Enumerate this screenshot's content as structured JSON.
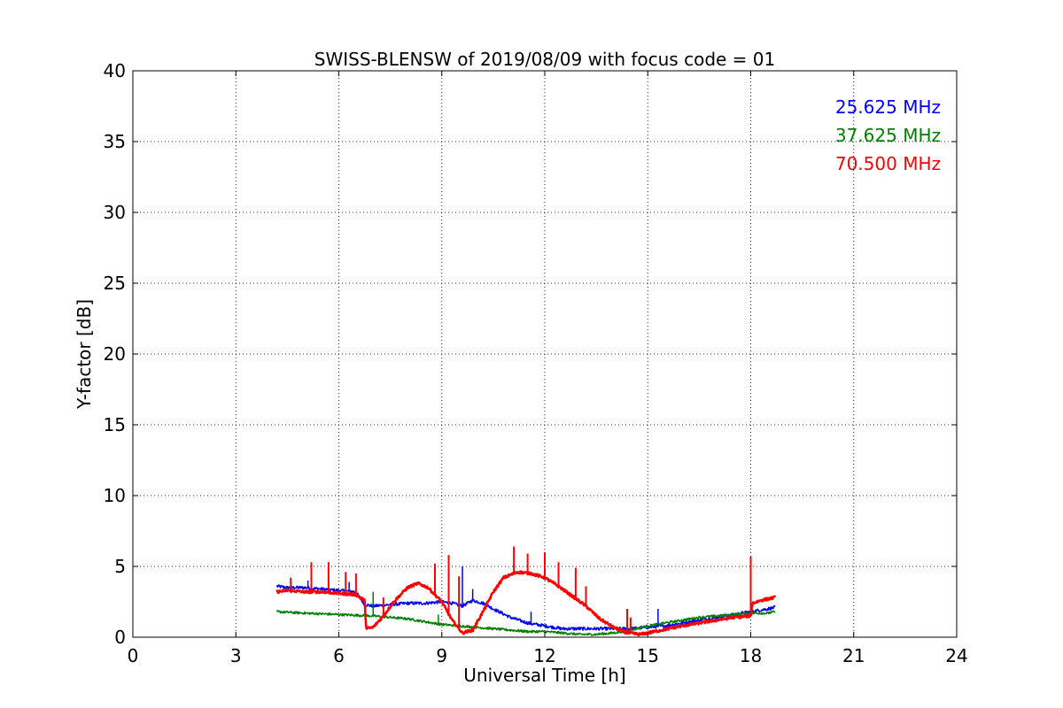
{
  "chart_data": {
    "type": "line",
    "title": "SWISS-BLENSW of 2019/08/09 with focus code = 01",
    "xlabel": "Universal Time [h]",
    "ylabel": "Y-factor [dB]",
    "xlim": [
      0,
      24
    ],
    "ylim": [
      0,
      40
    ],
    "xticks": [
      0,
      3,
      6,
      9,
      12,
      15,
      18,
      21,
      24
    ],
    "yticks": [
      0,
      5,
      10,
      15,
      20,
      25,
      30,
      35,
      40
    ],
    "x_tick_labels": [
      "0",
      "3",
      "6",
      "9",
      "12",
      "15",
      "18",
      "21",
      "24"
    ],
    "y_tick_labels": [
      "0",
      "5",
      "10",
      "15",
      "20",
      "25",
      "30",
      "35",
      "40"
    ],
    "grid": true,
    "legend_position": "top-right",
    "series": [
      {
        "name": "25.625 MHz",
        "color": "#0000ff",
        "x": [
          4.2,
          4.5,
          5.0,
          5.5,
          6.0,
          6.5,
          6.75,
          7.0,
          7.5,
          8.0,
          8.5,
          9.0,
          9.3,
          9.6,
          9.9,
          10.2,
          10.5,
          11.0,
          11.5,
          12.0,
          12.5,
          13.0,
          13.5,
          14.0,
          14.5,
          15.0,
          15.5,
          16.0,
          16.5,
          17.0,
          17.5,
          18.0,
          18.5,
          18.7
        ],
        "y": [
          3.6,
          3.5,
          3.5,
          3.4,
          3.3,
          3.2,
          2.3,
          2.2,
          2.3,
          2.4,
          2.4,
          2.5,
          2.4,
          2.2,
          2.6,
          2.4,
          2.0,
          1.4,
          1.0,
          0.8,
          0.6,
          0.6,
          0.6,
          0.6,
          0.6,
          0.7,
          0.8,
          1.0,
          1.2,
          1.4,
          1.6,
          1.8,
          2.0,
          2.1
        ],
        "spikes": [
          {
            "x": 4.6,
            "y": 4.2
          },
          {
            "x": 5.1,
            "y": 4.0
          },
          {
            "x": 5.7,
            "y": 4.1
          },
          {
            "x": 6.3,
            "y": 3.9
          },
          {
            "x": 9.6,
            "y": 5.0
          },
          {
            "x": 9.9,
            "y": 3.4
          },
          {
            "x": 11.6,
            "y": 1.8
          },
          {
            "x": 15.3,
            "y": 2.0
          }
        ]
      },
      {
        "name": "37.625 MHz",
        "color": "#008000",
        "x": [
          4.2,
          5.0,
          6.0,
          7.0,
          8.0,
          8.5,
          9.0,
          9.5,
          10.0,
          10.5,
          11.0,
          11.5,
          12.0,
          12.5,
          13.0,
          13.5,
          14.0,
          14.5,
          15.0,
          15.5,
          16.0,
          16.5,
          17.0,
          17.5,
          18.0,
          18.5,
          18.7
        ],
        "y": [
          1.8,
          1.7,
          1.6,
          1.5,
          1.3,
          1.1,
          0.9,
          0.8,
          0.7,
          0.6,
          0.5,
          0.4,
          0.4,
          0.3,
          0.2,
          0.2,
          0.3,
          0.5,
          0.8,
          1.0,
          1.2,
          1.4,
          1.5,
          1.6,
          1.7,
          1.7,
          1.8
        ],
        "spikes": [
          {
            "x": 7.0,
            "y": 3.2
          },
          {
            "x": 8.9,
            "y": 1.6
          }
        ]
      },
      {
        "name": "70.500 MHz",
        "color": "#ff0000",
        "x": [
          4.2,
          4.5,
          5.0,
          5.5,
          6.0,
          6.5,
          6.75,
          6.8,
          7.0,
          7.3,
          7.6,
          8.0,
          8.3,
          8.6,
          9.0,
          9.3,
          9.6,
          9.9,
          10.2,
          10.5,
          10.8,
          11.2,
          11.6,
          12.0,
          12.4,
          12.8,
          13.2,
          13.6,
          14.0,
          14.4,
          14.8,
          15.2,
          15.6,
          16.0,
          16.5,
          17.0,
          17.5,
          18.0,
          18.05,
          18.3,
          18.7
        ],
        "y": [
          3.2,
          3.3,
          3.2,
          3.2,
          3.1,
          3.0,
          2.6,
          0.6,
          0.7,
          1.5,
          2.5,
          3.5,
          3.8,
          3.5,
          2.5,
          1.2,
          0.3,
          0.5,
          1.8,
          3.2,
          4.2,
          4.6,
          4.5,
          4.2,
          3.6,
          2.9,
          2.2,
          1.3,
          0.7,
          0.3,
          0.2,
          0.4,
          0.6,
          0.8,
          1.0,
          1.2,
          1.4,
          1.5,
          2.4,
          2.6,
          2.8
        ],
        "spikes": [
          {
            "x": 4.6,
            "y": 4.1
          },
          {
            "x": 5.2,
            "y": 5.3
          },
          {
            "x": 5.7,
            "y": 5.3
          },
          {
            "x": 6.2,
            "y": 4.6
          },
          {
            "x": 6.5,
            "y": 4.5
          },
          {
            "x": 7.3,
            "y": 2.8
          },
          {
            "x": 8.5,
            "y": 3.6
          },
          {
            "x": 8.8,
            "y": 5.2
          },
          {
            "x": 9.2,
            "y": 5.8
          },
          {
            "x": 9.5,
            "y": 4.3
          },
          {
            "x": 11.1,
            "y": 6.4
          },
          {
            "x": 11.5,
            "y": 5.9
          },
          {
            "x": 12.0,
            "y": 6.0
          },
          {
            "x": 12.4,
            "y": 5.3
          },
          {
            "x": 12.9,
            "y": 4.9
          },
          {
            "x": 13.2,
            "y": 3.6
          },
          {
            "x": 14.4,
            "y": 2.0
          },
          {
            "x": 14.5,
            "y": 1.4
          },
          {
            "x": 18.0,
            "y": 5.7
          }
        ]
      }
    ]
  }
}
